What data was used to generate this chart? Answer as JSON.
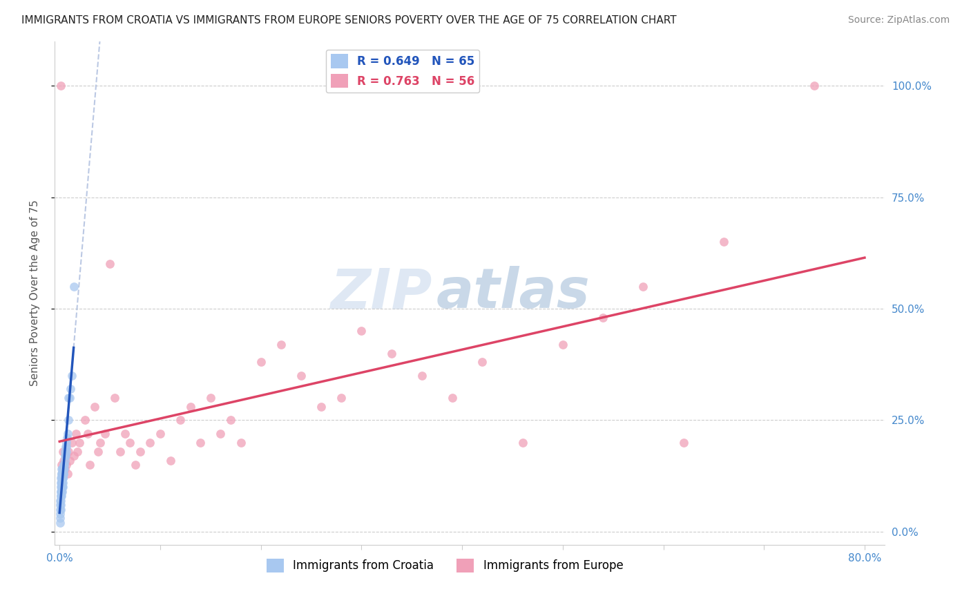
{
  "title": "IMMIGRANTS FROM CROATIA VS IMMIGRANTS FROM EUROPE SENIORS POVERTY OVER THE AGE OF 75 CORRELATION CHART",
  "source": "Source: ZipAtlas.com",
  "ylabel": "Seniors Poverty Over the Age of 75",
  "legend_label_1": "Immigrants from Croatia",
  "legend_label_2": "Immigrants from Europe",
  "r1": 0.649,
  "n1": 65,
  "r2": 0.763,
  "n2": 56,
  "watermark_zip": "ZIP",
  "watermark_atlas": "atlas",
  "color1": "#A8C8F0",
  "color2": "#F0A0B8",
  "line_color1": "#2255BB",
  "line_color2": "#DD4466",
  "line_dash_color": "#AABBDD",
  "background_color": "#ffffff",
  "grid_color": "#cccccc",
  "x_tick_positions": [
    0.0,
    0.1,
    0.2,
    0.3,
    0.4,
    0.5,
    0.6,
    0.7,
    0.8
  ],
  "x_tick_labels": [
    "0.0%",
    "",
    "",
    "",
    "",
    "",
    "",
    "",
    "80.0%"
  ],
  "y_tick_positions": [
    0.0,
    0.25,
    0.5,
    0.75,
    1.0
  ],
  "y_tick_labels": [
    "0.0%",
    "25.0%",
    "50.0%",
    "75.0%",
    "100.0%"
  ],
  "xlim": [
    -0.005,
    0.82
  ],
  "ylim": [
    -0.03,
    1.1
  ],
  "croatia_x": [
    0.0003,
    0.0004,
    0.0005,
    0.0006,
    0.0007,
    0.0008,
    0.0009,
    0.001,
    0.001,
    0.001,
    0.001,
    0.0012,
    0.0013,
    0.0014,
    0.0015,
    0.0015,
    0.0016,
    0.0017,
    0.0018,
    0.0019,
    0.002,
    0.002,
    0.002,
    0.002,
    0.002,
    0.002,
    0.0022,
    0.0023,
    0.0024,
    0.0025,
    0.0025,
    0.0026,
    0.0027,
    0.0028,
    0.003,
    0.003,
    0.003,
    0.003,
    0.003,
    0.0032,
    0.0034,
    0.0035,
    0.0036,
    0.0038,
    0.004,
    0.004,
    0.0042,
    0.0044,
    0.0045,
    0.005,
    0.005,
    0.0055,
    0.006,
    0.006,
    0.0065,
    0.007,
    0.007,
    0.0075,
    0.008,
    0.009,
    0.009,
    0.01,
    0.011,
    0.012,
    0.014
  ],
  "croatia_y": [
    0.02,
    0.04,
    0.03,
    0.05,
    0.06,
    0.07,
    0.05,
    0.08,
    0.09,
    0.1,
    0.11,
    0.06,
    0.07,
    0.08,
    0.09,
    0.12,
    0.1,
    0.11,
    0.13,
    0.09,
    0.1,
    0.12,
    0.13,
    0.14,
    0.08,
    0.09,
    0.11,
    0.12,
    0.1,
    0.13,
    0.14,
    0.09,
    0.1,
    0.11,
    0.12,
    0.13,
    0.14,
    0.1,
    0.11,
    0.12,
    0.13,
    0.14,
    0.12,
    0.13,
    0.14,
    0.15,
    0.13,
    0.14,
    0.15,
    0.16,
    0.17,
    0.18,
    0.17,
    0.19,
    0.18,
    0.19,
    0.2,
    0.21,
    0.22,
    0.25,
    0.3,
    0.3,
    0.32,
    0.35,
    0.55
  ],
  "europe_x": [
    0.001,
    0.002,
    0.003,
    0.004,
    0.005,
    0.006,
    0.007,
    0.008,
    0.009,
    0.01,
    0.012,
    0.014,
    0.016,
    0.018,
    0.02,
    0.025,
    0.028,
    0.03,
    0.035,
    0.038,
    0.04,
    0.045,
    0.05,
    0.055,
    0.06,
    0.065,
    0.07,
    0.075,
    0.08,
    0.09,
    0.1,
    0.11,
    0.12,
    0.13,
    0.14,
    0.15,
    0.16,
    0.17,
    0.18,
    0.2,
    0.22,
    0.24,
    0.26,
    0.28,
    0.3,
    0.33,
    0.36,
    0.39,
    0.42,
    0.46,
    0.5,
    0.54,
    0.58,
    0.62,
    0.66,
    0.75
  ],
  "europe_y": [
    1.0,
    0.15,
    0.18,
    0.16,
    0.14,
    0.17,
    0.15,
    0.13,
    0.18,
    0.16,
    0.2,
    0.17,
    0.22,
    0.18,
    0.2,
    0.25,
    0.22,
    0.15,
    0.28,
    0.18,
    0.2,
    0.22,
    0.6,
    0.3,
    0.18,
    0.22,
    0.2,
    0.15,
    0.18,
    0.2,
    0.22,
    0.16,
    0.25,
    0.28,
    0.2,
    0.3,
    0.22,
    0.25,
    0.2,
    0.38,
    0.42,
    0.35,
    0.28,
    0.3,
    0.45,
    0.4,
    0.35,
    0.3,
    0.38,
    0.2,
    0.42,
    0.48,
    0.55,
    0.2,
    0.65,
    1.0
  ]
}
